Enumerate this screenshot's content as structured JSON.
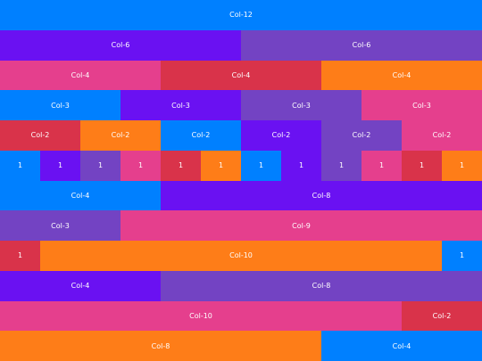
{
  "colors": {
    "blue": "#0080ff",
    "purple": "#6a11f2",
    "violet": "#7343c3",
    "pink": "#e53f8d",
    "red": "#d9334a",
    "orange": "#fe7d18"
  },
  "rows": [
    [
      {
        "label": "Col-12",
        "span": 12,
        "color": "blue"
      }
    ],
    [
      {
        "label": "Col-6",
        "span": 6,
        "color": "purple"
      },
      {
        "label": "Col-6",
        "span": 6,
        "color": "violet"
      }
    ],
    [
      {
        "label": "Col-4",
        "span": 4,
        "color": "pink"
      },
      {
        "label": "Col-4",
        "span": 4,
        "color": "red"
      },
      {
        "label": "Col-4",
        "span": 4,
        "color": "orange"
      }
    ],
    [
      {
        "label": "Col-3",
        "span": 3,
        "color": "blue"
      },
      {
        "label": "Col-3",
        "span": 3,
        "color": "purple"
      },
      {
        "label": "Col-3",
        "span": 3,
        "color": "violet"
      },
      {
        "label": "Col-3",
        "span": 3,
        "color": "pink"
      }
    ],
    [
      {
        "label": "Col-2",
        "span": 2,
        "color": "red"
      },
      {
        "label": "Col-2",
        "span": 2,
        "color": "orange"
      },
      {
        "label": "Col-2",
        "span": 2,
        "color": "blue"
      },
      {
        "label": "Col-2",
        "span": 2,
        "color": "purple"
      },
      {
        "label": "Col-2",
        "span": 2,
        "color": "violet"
      },
      {
        "label": "Col-2",
        "span": 2,
        "color": "pink"
      }
    ],
    [
      {
        "label": "1",
        "span": 1,
        "color": "blue"
      },
      {
        "label": "1",
        "span": 1,
        "color": "purple"
      },
      {
        "label": "1",
        "span": 1,
        "color": "violet"
      },
      {
        "label": "1",
        "span": 1,
        "color": "pink"
      },
      {
        "label": "1",
        "span": 1,
        "color": "red"
      },
      {
        "label": "1",
        "span": 1,
        "color": "orange"
      },
      {
        "label": "1",
        "span": 1,
        "color": "blue"
      },
      {
        "label": "1",
        "span": 1,
        "color": "purple"
      },
      {
        "label": "1",
        "span": 1,
        "color": "violet"
      },
      {
        "label": "1",
        "span": 1,
        "color": "pink"
      },
      {
        "label": "1",
        "span": 1,
        "color": "red"
      },
      {
        "label": "1",
        "span": 1,
        "color": "orange"
      }
    ],
    [
      {
        "label": "Col-4",
        "span": 4,
        "color": "blue"
      },
      {
        "label": "Col-8",
        "span": 8,
        "color": "purple"
      }
    ],
    [
      {
        "label": "Col-3",
        "span": 3,
        "color": "violet"
      },
      {
        "label": "Col-9",
        "span": 9,
        "color": "pink"
      }
    ],
    [
      {
        "label": "1",
        "span": 1,
        "color": "red"
      },
      {
        "label": "Col-10",
        "span": 10,
        "color": "orange"
      },
      {
        "label": "1",
        "span": 1,
        "color": "blue"
      }
    ],
    [
      {
        "label": "Col-4",
        "span": 4,
        "color": "purple"
      },
      {
        "label": "Col-8",
        "span": 8,
        "color": "violet"
      }
    ],
    [
      {
        "label": "Col-10",
        "span": 10,
        "color": "pink"
      },
      {
        "label": "Col-2",
        "span": 2,
        "color": "red"
      }
    ],
    [
      {
        "label": "Col-8",
        "span": 8,
        "color": "orange"
      },
      {
        "label": "Col-4",
        "span": 4,
        "color": "blue"
      }
    ]
  ]
}
